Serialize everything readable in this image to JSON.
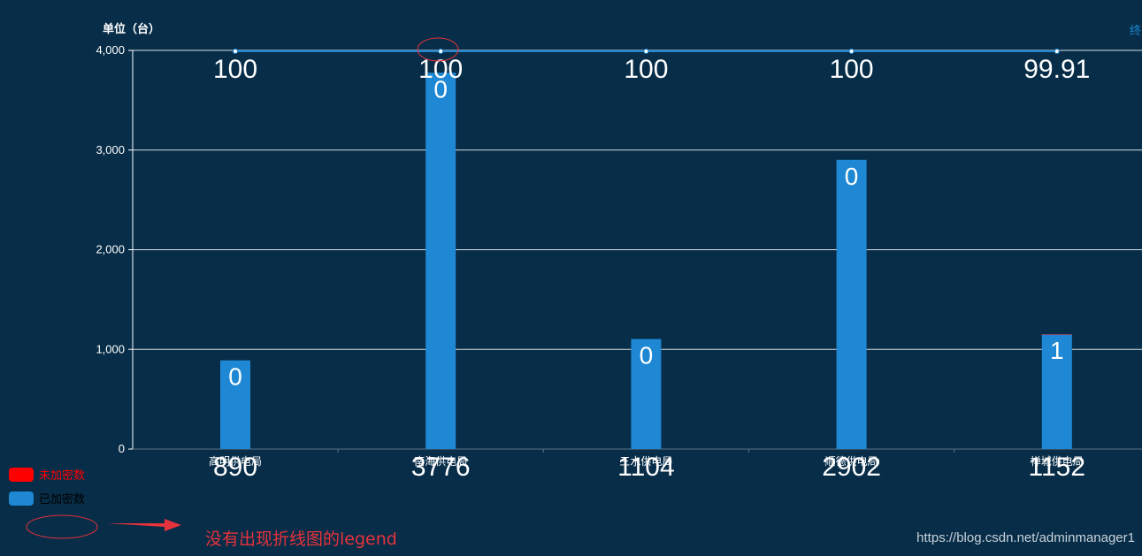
{
  "chart_data": {
    "type": "bar",
    "unit_label": "单位（台）",
    "ylim": [
      0,
      4000
    ],
    "yticks": [
      0,
      1000,
      2000,
      3000,
      4000
    ],
    "ytick_labels": [
      "0",
      "1,000",
      "2,000",
      "3,000",
      "4,000"
    ],
    "grid": true,
    "categories": [
      "高明供电局",
      "南海供电局",
      "三水供电局",
      "顺德供电局",
      "禅城供电局"
    ],
    "series": [
      {
        "name": "未加密数",
        "color": "#ff0000",
        "values": [
          0,
          0,
          0,
          0,
          1
        ]
      },
      {
        "name": "已加密数",
        "color": "#1e88d4",
        "values": [
          890,
          3776,
          1104,
          2902,
          1152
        ]
      },
      {
        "name": "终",
        "type": "line",
        "color": "#1e88d4",
        "values": [
          100,
          100,
          100,
          100,
          99.91
        ],
        "labels": [
          "100",
          "100",
          "100",
          "100",
          "99.91"
        ]
      }
    ],
    "total_labels": [
      "890",
      "3776",
      "1104",
      "2902",
      "1152"
    ],
    "bar_labels": [
      "0",
      "0",
      "0",
      "0",
      "1"
    ],
    "legend_position": "bottom-left"
  },
  "annotation": {
    "text": "没有出现折线图的legend",
    "color": "#e8323c"
  },
  "watermark": "https://blog.csdn.net/adminmanager1"
}
